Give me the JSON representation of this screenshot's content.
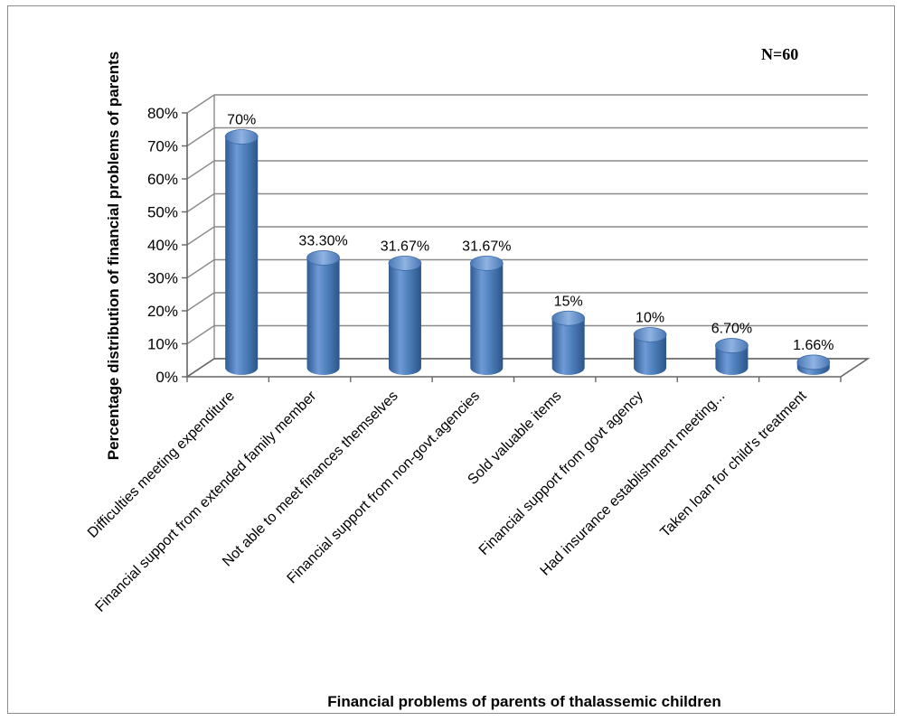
{
  "chart_data": {
    "type": "bar",
    "categories": [
      "Difficulties meeting expenditure",
      "Financial support from extended family member",
      "Not able to meet finances themselves",
      "Financial support from non-govt.agencies",
      "Sold valuable items",
      "Financial support from govt agency",
      "Had insurance establishment meeting...",
      "Taken loan for child's treatment"
    ],
    "values": [
      70,
      33.3,
      31.67,
      31.67,
      15,
      10,
      6.7,
      1.66
    ],
    "data_labels": [
      "70%",
      "33.30%",
      "31.67%",
      "31.67%",
      "15%",
      "10%",
      "6.70%",
      "1.66%"
    ],
    "ylim": [
      0,
      80
    ],
    "yticks": [
      "0%",
      "10%",
      "20%",
      "30%",
      "40%",
      "50%",
      "60%",
      "70%",
      "80%"
    ],
    "xlabel": "Financial problems of parents of thalassemic children",
    "ylabel": "Percentage distribution of financial problems  of parents",
    "annotation": "N=60",
    "grid": true,
    "bar_color": "#4f81bd"
  }
}
